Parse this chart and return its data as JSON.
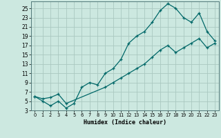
{
  "xlabel": "Humidex (Indice chaleur)",
  "bg_color": "#cce8e0",
  "grid_color": "#aac8c0",
  "line_color": "#006868",
  "xlim": [
    -0.5,
    23.5
  ],
  "ylim": [
    3,
    26.5
  ],
  "xticks": [
    0,
    1,
    2,
    3,
    4,
    5,
    6,
    7,
    8,
    9,
    10,
    11,
    12,
    13,
    14,
    15,
    16,
    17,
    18,
    19,
    20,
    21,
    22,
    23
  ],
  "yticks": [
    3,
    5,
    7,
    9,
    11,
    13,
    15,
    17,
    19,
    21,
    23,
    25
  ],
  "line1_x": [
    0,
    1,
    2,
    3,
    4,
    5,
    6,
    7,
    8,
    9,
    10,
    11,
    12,
    13,
    14,
    15,
    16,
    17,
    18,
    19,
    20,
    21,
    22,
    23
  ],
  "line1_y": [
    6,
    5,
    4,
    5,
    3.5,
    4.5,
    8,
    9,
    8.5,
    11,
    12,
    14,
    17.5,
    19,
    20,
    22,
    24.5,
    26,
    25,
    23,
    22,
    24,
    20,
    18
  ],
  "line2_x": [
    0,
    1,
    2,
    3,
    4,
    9,
    10,
    11,
    12,
    13,
    14,
    15,
    16,
    17,
    18,
    19,
    20,
    21,
    22,
    23
  ],
  "line2_y": [
    6,
    5.5,
    5.8,
    6.5,
    4.5,
    8,
    9,
    10,
    11,
    12,
    13,
    14.5,
    16,
    17,
    15.5,
    16.5,
    17.5,
    18.5,
    16.5,
    17.5
  ]
}
